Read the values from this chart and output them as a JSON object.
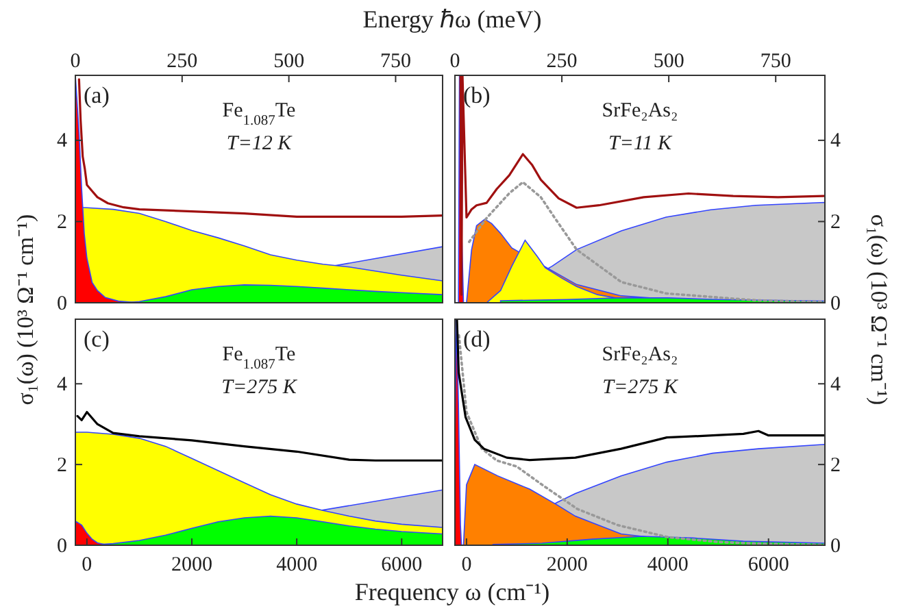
{
  "chart_data": [
    {
      "type": "area",
      "x2label": "Energy ℏω (meV)",
      "ylabel": "σ₁(ω) (10³ Ω⁻¹ cm⁻¹)",
      "xlim": [
        -220,
        6780
      ],
      "ylim": [
        0,
        5.6
      ],
      "yticks": [
        0,
        2,
        4
      ],
      "x2lim": [
        0,
        860
      ],
      "x2ticks": [
        0,
        250,
        500,
        750
      ],
      "annotations": [
        "(a)",
        "Fe$_{1.087}$Te",
        "T=12 K"
      ],
      "series": [
        {
          "color": "#c8c8c8",
          "x": [
            -220,
            700,
            6780
          ],
          "values": [
            0,
            0,
            1.38
          ]
        },
        {
          "color": "#ffff00",
          "x": [
            -220,
            0,
            500,
            1000,
            1500,
            2000,
            2500,
            3000,
            3500,
            4000,
            4500,
            5000,
            5500,
            6000,
            6780
          ],
          "values": [
            2.35,
            2.34,
            2.3,
            2.2,
            2.0,
            1.78,
            1.6,
            1.4,
            1.18,
            1.05,
            0.95,
            0.88,
            0.78,
            0.68,
            0.54
          ]
        },
        {
          "color": "#00ff00",
          "x": [
            -220,
            700,
            1000,
            1500,
            2000,
            2500,
            3000,
            3500,
            4000,
            4500,
            5000,
            5500,
            6000,
            6780
          ],
          "values": [
            0,
            0,
            0.03,
            0.15,
            0.32,
            0.4,
            0.44,
            0.43,
            0.4,
            0.36,
            0.32,
            0.28,
            0.25,
            0.2
          ]
        },
        {
          "color": "#ff0000",
          "x": [
            -220,
            -150,
            -100,
            -50,
            0,
            100,
            200,
            350,
            600,
            1000
          ],
          "values": [
            5.6,
            4.2,
            2.8,
            1.7,
            1.1,
            0.5,
            0.3,
            0.13,
            0.04,
            0
          ]
        },
        {
          "type": "line",
          "color": "#a01010",
          "x": [
            -150,
            -120,
            -80,
            -40,
            0,
            100,
            200,
            400,
            700,
            1000,
            2000,
            3000,
            4000,
            5000,
            6000,
            6780
          ],
          "values": [
            5.5,
            4.5,
            3.6,
            3.3,
            2.9,
            2.75,
            2.6,
            2.45,
            2.35,
            2.3,
            2.25,
            2.2,
            2.12,
            2.12,
            2.12,
            2.15
          ]
        }
      ]
    },
    {
      "type": "area",
      "y2label": "σ₁(ω) (10³ Ω⁻¹ cm⁻¹)",
      "xlim": [
        -230,
        7120
      ],
      "y2lim": [
        0,
        5.6
      ],
      "y2ticks": [
        0,
        2,
        4
      ],
      "x2lim": [
        0,
        865
      ],
      "x2ticks": [
        0,
        250,
        500,
        750
      ],
      "annotations": [
        "(b)",
        "SrFe₂As₂",
        "T=11 K"
      ],
      "series": [
        {
          "axis": "y2",
          "color": "#c8c8c8",
          "x": [
            400,
            1700,
            2187,
            3076,
            3964,
            4853,
            5742,
            7120
          ],
          "values": [
            0,
            0.9,
            1.31,
            1.77,
            2.11,
            2.29,
            2.4,
            2.47
          ]
        },
        {
          "axis": "y2",
          "color": "#ff8000",
          "x": [
            0,
            100,
            200,
            364,
            500,
            676,
            900,
            2187,
            3076,
            5000
          ],
          "values": [
            0,
            1.3,
            1.9,
            2.06,
            1.95,
            1.71,
            1.35,
            0.45,
            0.17,
            0
          ]
        },
        {
          "axis": "y2",
          "color": "#ffff00",
          "x": [
            400,
            676,
            900,
            1164,
            1400,
            1564,
            1900,
            2187,
            2600,
            3500
          ],
          "values": [
            0,
            0.3,
            0.9,
            1.54,
            1.15,
            0.86,
            0.6,
            0.4,
            0.2,
            0
          ]
        },
        {
          "axis": "y2",
          "color": "#00ff00",
          "x": [
            676,
            2000,
            3000,
            4000,
            5000,
            7120
          ],
          "values": [
            0.05,
            0.08,
            0.12,
            0.12,
            0.08,
            0.04
          ]
        },
        {
          "axis": "y2",
          "color": "#ff0000",
          "x": [
            -160,
            -140,
            -100,
            -60
          ],
          "values": [
            0,
            5.6,
            2,
            0
          ]
        },
        {
          "type": "line",
          "axis": "y2",
          "color": "#999999",
          "line_style": "dotted",
          "x": [
            53,
            409,
            853,
            1120,
            1476,
            1742,
            2187,
            3076,
            3964,
            5742,
            7120
          ],
          "values": [
            1.5,
            2.1,
            2.7,
            2.97,
            2.6,
            2.11,
            1.31,
            0.51,
            0.23,
            0.06,
            0.02
          ]
        },
        {
          "type": "line",
          "axis": "y2",
          "color": "#a01010",
          "x": [
            -120,
            -100,
            -80,
            0,
            100,
            200,
            400,
            600,
            850,
            1120,
            1300,
            1476,
            1831,
            2187,
            2631,
            3520,
            4409,
            5298,
            6187,
            7100
          ],
          "values": [
            5.6,
            0.2,
            5.6,
            2.1,
            2.3,
            2.4,
            2.46,
            2.8,
            3.14,
            3.66,
            3.4,
            3.03,
            2.57,
            2.34,
            2.4,
            2.6,
            2.69,
            2.63,
            2.6,
            2.63
          ]
        }
      ]
    },
    {
      "type": "area",
      "xlabel": "Frequency ω (cm⁻¹)",
      "xlim": [
        -220,
        6780
      ],
      "xticks": [
        0,
        2000,
        4000,
        6000
      ],
      "ylim": [
        0,
        5.6
      ],
      "yticks": [
        0,
        2,
        4
      ],
      "annotations": [
        "(c)",
        "Fe$_{1.087}$Te",
        "T=275 K"
      ],
      "series": [
        {
          "color": "#c8c8c8",
          "x": [
            -220,
            500,
            6780
          ],
          "values": [
            0,
            0,
            1.37
          ]
        },
        {
          "color": "#ffff00",
          "x": [
            -220,
            0,
            500,
            1000,
            1500,
            2000,
            2500,
            3000,
            3500,
            4000,
            4500,
            5000,
            5500,
            6000,
            6780
          ],
          "values": [
            2.8,
            2.8,
            2.75,
            2.65,
            2.45,
            2.15,
            1.85,
            1.55,
            1.25,
            1.02,
            0.86,
            0.72,
            0.6,
            0.52,
            0.44
          ]
        },
        {
          "color": "#00ff00",
          "x": [
            -220,
            0,
            500,
            1000,
            1500,
            2000,
            2500,
            3000,
            3500,
            4000,
            4500,
            5000,
            5500,
            6000,
            6780
          ],
          "values": [
            0,
            0,
            0.04,
            0.12,
            0.25,
            0.42,
            0.58,
            0.68,
            0.72,
            0.68,
            0.58,
            0.48,
            0.4,
            0.34,
            0.28
          ]
        },
        {
          "color": "#ff0000",
          "x": [
            -220,
            -100,
            0,
            100,
            200,
            400
          ],
          "values": [
            0.6,
            0.5,
            0.3,
            0.15,
            0.06,
            0
          ]
        },
        {
          "type": "line",
          "color": "#000000",
          "x": [
            -180,
            -100,
            0,
            200,
            500,
            1000,
            2000,
            3000,
            4000,
            5000,
            5500,
            6000,
            6780
          ],
          "values": [
            3.2,
            3.1,
            3.3,
            3.0,
            2.78,
            2.7,
            2.6,
            2.45,
            2.32,
            2.12,
            2.1,
            2.1,
            2.1
          ]
        }
      ]
    },
    {
      "type": "area",
      "xlim": [
        -230,
        7120
      ],
      "xticks": [
        0,
        2000,
        4000,
        6000
      ],
      "y2lim": [
        0,
        5.6
      ],
      "y2ticks": [
        0,
        2,
        4
      ],
      "annotations": [
        "(d)",
        "SrFe₂As₂",
        "T=275 K"
      ],
      "series": [
        {
          "axis": "y2",
          "color": "#c8c8c8",
          "x": [
            300,
            1800,
            2163,
            3072,
            3981,
            4890,
            5800,
            7120
          ],
          "values": [
            0,
            1.06,
            1.28,
            1.72,
            2.06,
            2.28,
            2.39,
            2.5
          ]
        },
        {
          "axis": "y2",
          "color": "#ff8000",
          "x": [
            -60,
            0,
            164,
            618,
            1254,
            1800,
            2163,
            3072,
            4890
          ],
          "values": [
            0,
            1.5,
            2.0,
            1.72,
            1.39,
            1.0,
            0.72,
            0.28,
            0.02
          ]
        },
        {
          "axis": "y2",
          "color": "#00ff00",
          "x": [
            527,
            1500,
            2500,
            3500,
            4500,
            5500,
            7120
          ],
          "values": [
            0.02,
            0.05,
            0.15,
            0.22,
            0.18,
            0.1,
            0.05
          ]
        },
        {
          "axis": "y2",
          "color": "#ff0000",
          "x": [
            -230,
            -200,
            -160,
            -120,
            -100
          ],
          "values": [
            2.5,
            5.6,
            3.5,
            0.5,
            0
          ]
        },
        {
          "type": "line",
          "axis": "y2",
          "color": "#999999",
          "line_style": "dotted",
          "x": [
            -150,
            0,
            300,
            600,
            1000,
            1500,
            2200,
            3000,
            4000,
            5000,
            6000,
            7120
          ],
          "values": [
            5.2,
            3.3,
            2.4,
            2.1,
            1.95,
            1.5,
            0.9,
            0.5,
            0.2,
            0.08,
            0.03,
            0.01
          ]
        },
        {
          "type": "line",
          "axis": "y2",
          "color": "#000000",
          "x": [
            -190,
            -155,
            -18,
            164,
            345,
            800,
            1254,
            2163,
            3072,
            3981,
            4890,
            5500,
            5800,
            6000,
            7100
          ],
          "values": [
            5.6,
            4.28,
            3.17,
            2.61,
            2.39,
            2.17,
            2.11,
            2.17,
            2.39,
            2.67,
            2.72,
            2.76,
            2.83,
            2.72,
            2.72
          ]
        }
      ]
    }
  ]
}
